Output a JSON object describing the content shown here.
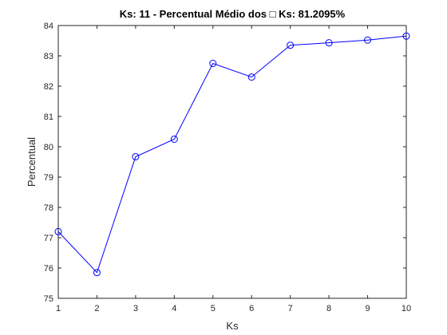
{
  "chart_data": {
    "type": "line",
    "title": "Ks: 11 - Percentual Médio dos □ Ks: 81.2095%",
    "xlabel": "Ks",
    "ylabel": "Percentual",
    "xlim": [
      1,
      10
    ],
    "ylim": [
      75,
      84
    ],
    "xticks": [
      "1",
      "2",
      "3",
      "4",
      "5",
      "6",
      "7",
      "8",
      "9",
      "10"
    ],
    "yticks": [
      "75",
      "76",
      "77",
      "78",
      "79",
      "80",
      "81",
      "82",
      "83",
      "84"
    ],
    "grid": false,
    "marker": "circle",
    "series_color": "#0000ff",
    "axis_color": "#262626",
    "x": [
      1,
      2,
      3,
      4,
      5,
      6,
      7,
      8,
      9,
      10
    ],
    "y": [
      77.2,
      75.85,
      79.67,
      80.25,
      82.75,
      82.3,
      83.35,
      83.43,
      83.52,
      83.65
    ]
  }
}
